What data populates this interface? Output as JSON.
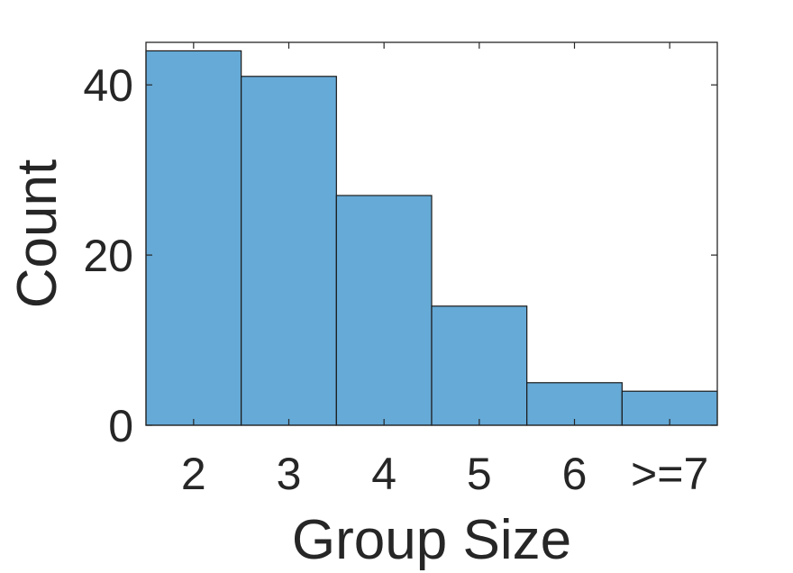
{
  "chart_data": {
    "type": "bar",
    "title": "",
    "xlabel": "Group Size",
    "ylabel": "Count",
    "categories": [
      "2",
      "3",
      "4",
      "5",
      "6",
      ">=7"
    ],
    "values": [
      44,
      41,
      27,
      14,
      5,
      4
    ],
    "ylim": [
      0,
      45
    ],
    "yticks": [
      0,
      20,
      40
    ],
    "ytick_labels": [
      "0",
      "20",
      "40"
    ],
    "grid": false,
    "legend": "none",
    "colors": {
      "bar_fill": "#66aad7",
      "bar_edge": "#1a1a1a",
      "axis": "#262626",
      "background": "#ffffff"
    }
  }
}
